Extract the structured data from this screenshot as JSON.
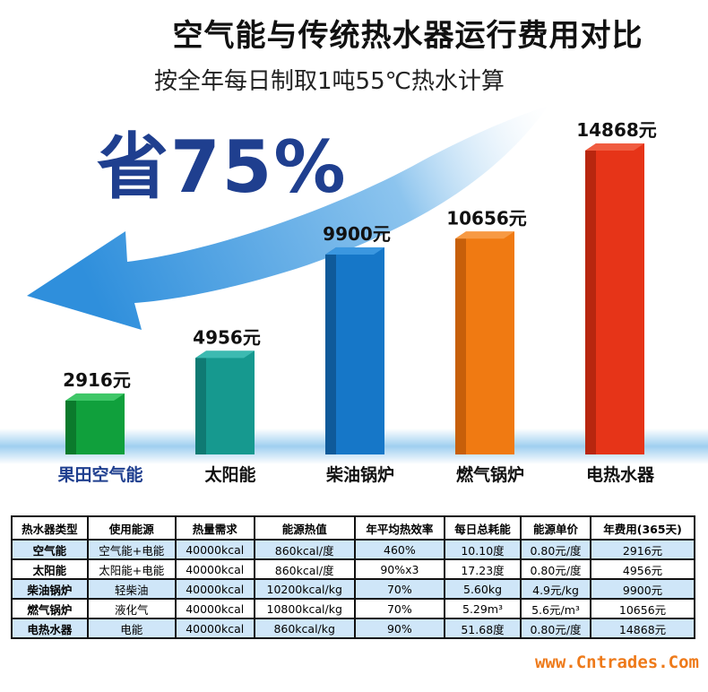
{
  "title": "空气能与传统热水器运行费用对比",
  "subtitle": "按全年每日制取1吨55℃热水计算",
  "saving_label": "省75%",
  "colors": {
    "arrow": "#2f8fdc",
    "base_band": "#9fcff0",
    "title": "#111111",
    "saving": "#1f3f8f",
    "category_highlight": "#1f3f8f",
    "table_row_blue": "#cfe6f8",
    "watermark": "#ee7a1a"
  },
  "chart_data": {
    "type": "bar",
    "title": "空气能与传统热水器运行费用对比",
    "subtitle": "按全年每日制取1吨55℃热水计算",
    "categories": [
      "果田空气能",
      "太阳能",
      "柴油锅炉",
      "燃气锅炉",
      "电热水器"
    ],
    "values": [
      2916,
      4956,
      9900,
      10656,
      14868
    ],
    "data_labels": [
      "2916元",
      "4956元",
      "9900元",
      "10656元",
      "14868元"
    ],
    "bar_colors": [
      "#10a03c",
      "#16998f",
      "#1677c8",
      "#f07a12",
      "#e63418"
    ],
    "bar_side_colors": [
      "#0b7a2c",
      "#0f7a73",
      "#0f5a9a",
      "#c75f0a",
      "#b8260f"
    ],
    "bar_top_colors": [
      "#3fc768",
      "#3cbab1",
      "#3b97e0",
      "#f79a44",
      "#f05c40"
    ],
    "ylim": [
      0,
      16000
    ],
    "grid": false,
    "legend": "none",
    "annotation": "省75%"
  },
  "table": {
    "headers": [
      "热水器类型",
      "使用能源",
      "热量需求",
      "能源热值",
      "年平均热效率",
      "每日总耗能",
      "能源单价",
      "年费用(365天)"
    ],
    "rows": [
      [
        "空气能",
        "空气能+电能",
        "40000kcal",
        "860kcal/度",
        "460%",
        "10.10度",
        "0.80元/度",
        "2916元"
      ],
      [
        "太阳能",
        "太阳能+电能",
        "40000kcal",
        "860kcal/度",
        "90%x3",
        "17.23度",
        "0.80元/度",
        "4956元"
      ],
      [
        "柴油锅炉",
        "轻柴油",
        "40000kcal",
        "10200kcal/kg",
        "70%",
        "5.60kg",
        "4.9元/kg",
        "9900元"
      ],
      [
        "燃气锅炉",
        "液化气",
        "40000kcal",
        "10800kcal/kg",
        "70%",
        "5.29m³",
        "5.6元/m³",
        "10656元"
      ],
      [
        "电热水器",
        "电能",
        "40000kcal",
        "860kcal/kg",
        "90%",
        "51.68度",
        "0.80元/度",
        "14868元"
      ]
    ]
  },
  "watermark": "www.Cntrades.Com"
}
